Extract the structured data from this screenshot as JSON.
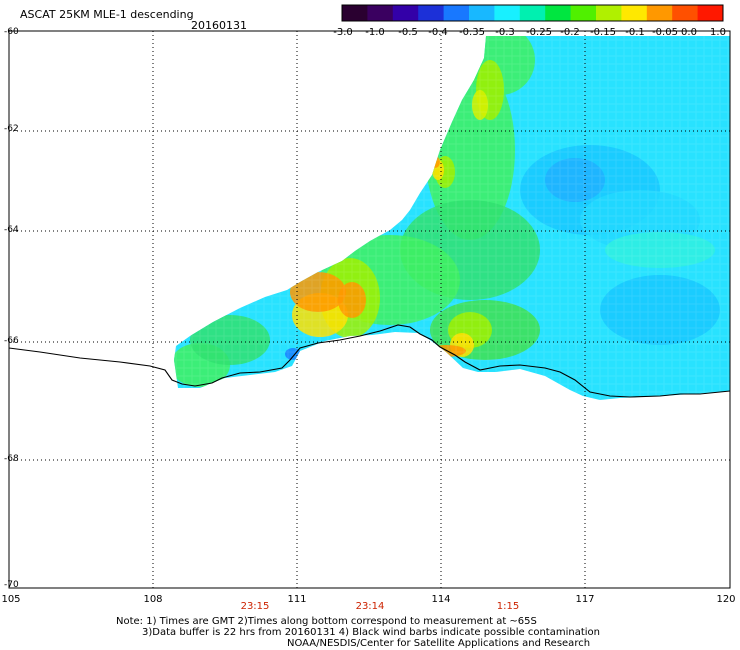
{
  "header": {
    "title": "ASCAT 25KM MLE-1 descending",
    "date": "20160131"
  },
  "colorbar": {
    "labels": [
      "-3.0",
      "-1.0",
      "-0.5",
      "-0.4",
      "-0.35",
      "-0.3",
      "-0.25",
      "-0.2",
      "-0.15",
      "-0.1",
      "-0.05",
      "0.0",
      "1.0"
    ],
    "colors": [
      "#2a0030",
      "#3a0060",
      "#3300a8",
      "#1c30d8",
      "#1878ff",
      "#18b8ff",
      "#18f0ff",
      "#00f0b0",
      "#00e640",
      "#50f000",
      "#b0f000",
      "#ffe800",
      "#ff9800",
      "#ff5000",
      "#ff1800"
    ]
  },
  "map": {
    "lat_labels": [
      "-60",
      "-62",
      "-64",
      "-66",
      "-68",
      "-70"
    ],
    "lon_labels": [
      "105",
      "108",
      "111",
      "114",
      "117",
      "120"
    ],
    "pass_times": [
      "23:15",
      "23:14",
      "1:15"
    ]
  },
  "notes": {
    "line1": "Note: 1) Times are GMT 2)Times along bottom correspond to measurement at ~65S",
    "line2": "3)Data buffer is 22 hrs from 20160131 4) Black wind barbs indicate possible contamination",
    "line3": "NOAA/NESDIS/Center for Satellite Applications and Research"
  }
}
